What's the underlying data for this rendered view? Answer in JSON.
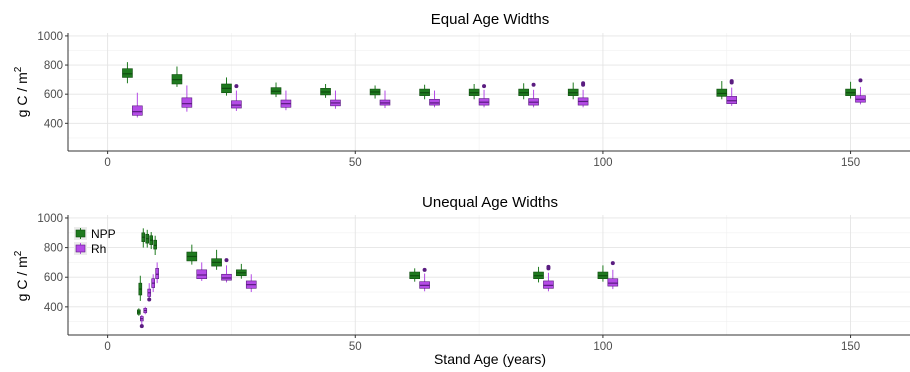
{
  "chart_data": [
    {
      "type": "boxplot",
      "title": "Equal Age Widths",
      "xlabel": "",
      "ylabel": "g C / m²",
      "xlim": [
        -8,
        162
      ],
      "ylim": [
        210,
        1020
      ],
      "x_ticks": [
        0,
        50,
        100,
        150
      ],
      "y_ticks": [
        400,
        600,
        800,
        1000
      ],
      "grid": true,
      "legend": "none",
      "series": [
        {
          "name": "NPP",
          "color": "#1f7a1f",
          "boxes": [
            {
              "x": 4,
              "whislo": 675,
              "q1": 715,
              "med": 740,
              "q3": 775,
              "whishi": 820,
              "outliers": []
            },
            {
              "x": 14,
              "whislo": 650,
              "q1": 670,
              "med": 700,
              "q3": 735,
              "whishi": 790,
              "outliers": []
            },
            {
              "x": 24,
              "whislo": 590,
              "q1": 610,
              "med": 640,
              "q3": 670,
              "whishi": 715,
              "outliers": []
            },
            {
              "x": 34,
              "whislo": 580,
              "q1": 600,
              "med": 620,
              "q3": 645,
              "whishi": 680,
              "outliers": []
            },
            {
              "x": 44,
              "whislo": 575,
              "q1": 595,
              "med": 615,
              "q3": 640,
              "whishi": 670,
              "outliers": []
            },
            {
              "x": 54,
              "whislo": 570,
              "q1": 595,
              "med": 615,
              "q3": 635,
              "whishi": 660,
              "outliers": []
            },
            {
              "x": 64,
              "whislo": 565,
              "q1": 590,
              "med": 610,
              "q3": 635,
              "whishi": 665,
              "outliers": []
            },
            {
              "x": 74,
              "whislo": 565,
              "q1": 590,
              "med": 610,
              "q3": 635,
              "whishi": 670,
              "outliers": []
            },
            {
              "x": 84,
              "whislo": 565,
              "q1": 590,
              "med": 610,
              "q3": 635,
              "whishi": 675,
              "outliers": []
            },
            {
              "x": 94,
              "whislo": 565,
              "q1": 590,
              "med": 610,
              "q3": 635,
              "whishi": 680,
              "outliers": []
            },
            {
              "x": 124,
              "whislo": 565,
              "q1": 585,
              "med": 605,
              "q3": 635,
              "whishi": 690,
              "outliers": []
            },
            {
              "x": 150,
              "whislo": 570,
              "q1": 590,
              "med": 610,
              "q3": 635,
              "whishi": 685,
              "outliers": []
            }
          ]
        },
        {
          "name": "Rh",
          "color": "#b44be6",
          "boxes": [
            {
              "x": 6,
              "whislo": 440,
              "q1": 455,
              "med": 480,
              "q3": 520,
              "whishi": 610,
              "outliers": []
            },
            {
              "x": 16,
              "whislo": 480,
              "q1": 510,
              "med": 535,
              "q3": 575,
              "whishi": 660,
              "outliers": []
            },
            {
              "x": 26,
              "whislo": 485,
              "q1": 505,
              "med": 525,
              "q3": 555,
              "whishi": 625,
              "outliers": [
                655
              ]
            },
            {
              "x": 36,
              "whislo": 490,
              "q1": 510,
              "med": 535,
              "q3": 560,
              "whishi": 625,
              "outliers": []
            },
            {
              "x": 46,
              "whislo": 500,
              "q1": 520,
              "med": 540,
              "q3": 560,
              "whishi": 625,
              "outliers": []
            },
            {
              "x": 56,
              "whislo": 505,
              "q1": 525,
              "med": 540,
              "q3": 560,
              "whishi": 625,
              "outliers": []
            },
            {
              "x": 66,
              "whislo": 510,
              "q1": 525,
              "med": 540,
              "q3": 565,
              "whishi": 625,
              "outliers": []
            },
            {
              "x": 76,
              "whislo": 510,
              "q1": 525,
              "med": 545,
              "q3": 570,
              "whishi": 630,
              "outliers": [
                655
              ]
            },
            {
              "x": 86,
              "whislo": 510,
              "q1": 525,
              "med": 545,
              "q3": 570,
              "whishi": 630,
              "outliers": [
                665
              ]
            },
            {
              "x": 96,
              "whislo": 510,
              "q1": 525,
              "med": 550,
              "q3": 575,
              "whishi": 630,
              "outliers": [
                665,
                675
              ]
            },
            {
              "x": 126,
              "whislo": 520,
              "q1": 535,
              "med": 555,
              "q3": 585,
              "whishi": 645,
              "outliers": [
                680,
                690
              ]
            },
            {
              "x": 152,
              "whislo": 530,
              "q1": 545,
              "med": 565,
              "q3": 590,
              "whishi": 650,
              "outliers": [
                695
              ]
            }
          ]
        }
      ]
    },
    {
      "type": "boxplot",
      "title": "Unequal Age Widths",
      "xlabel": "Stand Age (years)",
      "ylabel": "g C / m²",
      "xlim": [
        -8,
        162
      ],
      "ylim": [
        210,
        1020
      ],
      "x_ticks": [
        0,
        50,
        100,
        150
      ],
      "y_ticks": [
        400,
        600,
        800,
        1000
      ],
      "grid": true,
      "legend": "top-left",
      "series": [
        {
          "name": "NPP",
          "color": "#1f7a1f",
          "boxes": [
            {
              "x": 6.3,
              "whislo": 340,
              "q1": 350,
              "med": 365,
              "q3": 380,
              "whishi": 390,
              "outliers": []
            },
            {
              "x": 6.6,
              "whislo": 440,
              "q1": 480,
              "med": 520,
              "q3": 560,
              "whishi": 610,
              "outliers": []
            },
            {
              "x": 7.2,
              "whislo": 800,
              "q1": 840,
              "med": 870,
              "q3": 900,
              "whishi": 930,
              "outliers": []
            },
            {
              "x": 8.0,
              "whislo": 800,
              "q1": 830,
              "med": 860,
              "q3": 890,
              "whishi": 920,
              "outliers": []
            },
            {
              "x": 8.8,
              "whislo": 790,
              "q1": 820,
              "med": 850,
              "q3": 880,
              "whishi": 905,
              "outliers": []
            },
            {
              "x": 9.6,
              "whislo": 750,
              "q1": 790,
              "med": 815,
              "q3": 850,
              "whishi": 880,
              "outliers": []
            },
            {
              "x": 17,
              "whislo": 685,
              "q1": 710,
              "med": 740,
              "q3": 770,
              "whishi": 820,
              "outliers": []
            },
            {
              "x": 22,
              "whislo": 650,
              "q1": 675,
              "med": 700,
              "q3": 725,
              "whishi": 785,
              "outliers": []
            },
            {
              "x": 27,
              "whislo": 590,
              "q1": 610,
              "med": 630,
              "q3": 650,
              "whishi": 690,
              "outliers": []
            },
            {
              "x": 62,
              "whislo": 570,
              "q1": 590,
              "med": 610,
              "q3": 635,
              "whishi": 660,
              "outliers": []
            },
            {
              "x": 87,
              "whislo": 565,
              "q1": 590,
              "med": 610,
              "q3": 635,
              "whishi": 670,
              "outliers": []
            },
            {
              "x": 100,
              "whislo": 570,
              "q1": 590,
              "med": 610,
              "q3": 635,
              "whishi": 680,
              "outliers": []
            }
          ]
        },
        {
          "name": "Rh",
          "color": "#b44be6",
          "boxes": [
            {
              "x": 6.9,
              "whislo": 270,
              "q1": 305,
              "med": 320,
              "q3": 335,
              "whishi": 345,
              "outliers": [
                270
              ]
            },
            {
              "x": 7.6,
              "whislo": 350,
              "q1": 360,
              "med": 375,
              "q3": 390,
              "whishi": 400,
              "outliers": []
            },
            {
              "x": 8.4,
              "whislo": 450,
              "q1": 470,
              "med": 495,
              "q3": 520,
              "whishi": 560,
              "outliers": [
                450
              ]
            },
            {
              "x": 9.2,
              "whislo": 500,
              "q1": 530,
              "med": 560,
              "q3": 590,
              "whishi": 620,
              "outliers": []
            },
            {
              "x": 10.0,
              "whislo": 560,
              "q1": 590,
              "med": 620,
              "q3": 660,
              "whishi": 700,
              "outliers": []
            },
            {
              "x": 19,
              "whislo": 575,
              "q1": 590,
              "med": 615,
              "q3": 650,
              "whishi": 700,
              "outliers": []
            },
            {
              "x": 24,
              "whislo": 565,
              "q1": 580,
              "med": 595,
              "q3": 620,
              "whishi": 680,
              "outliers": [
                715
              ]
            },
            {
              "x": 29,
              "whislo": 500,
              "q1": 525,
              "med": 550,
              "q3": 575,
              "whishi": 620,
              "outliers": []
            },
            {
              "x": 64,
              "whislo": 505,
              "q1": 525,
              "med": 545,
              "q3": 570,
              "whishi": 625,
              "outliers": [
                650
              ]
            },
            {
              "x": 89,
              "whislo": 505,
              "q1": 525,
              "med": 545,
              "q3": 575,
              "whishi": 630,
              "outliers": [
                660,
                670
              ]
            },
            {
              "x": 102,
              "whislo": 520,
              "q1": 540,
              "med": 560,
              "q3": 590,
              "whishi": 650,
              "outliers": [
                695
              ]
            }
          ]
        }
      ]
    }
  ]
}
